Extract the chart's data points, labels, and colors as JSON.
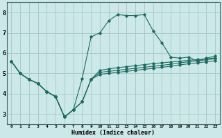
{
  "title": "",
  "xlabel": "Humidex (Indice chaleur)",
  "ylabel": "",
  "bg_color": "#cce8e8",
  "grid_color": "#aacccc",
  "line_color": "#1a6b60",
  "xlim": [
    -0.5,
    23.5
  ],
  "ylim": [
    2.5,
    8.5
  ],
  "xticks": [
    0,
    1,
    2,
    3,
    4,
    5,
    6,
    7,
    8,
    9,
    10,
    11,
    12,
    13,
    14,
    15,
    16,
    17,
    18,
    19,
    20,
    21,
    22,
    23
  ],
  "yticks": [
    3,
    4,
    5,
    6,
    7,
    8
  ],
  "series": [
    [
      5.6,
      5.0,
      4.7,
      4.5,
      4.1,
      3.85,
      2.85,
      3.2,
      3.6,
      4.7,
      5.15,
      5.22,
      5.28,
      5.33,
      5.38,
      5.43,
      5.48,
      5.52,
      5.56,
      5.6,
      5.64,
      5.68,
      5.72,
      5.76
    ],
    [
      5.6,
      5.0,
      4.7,
      4.5,
      4.1,
      3.85,
      2.85,
      3.2,
      4.75,
      6.8,
      7.0,
      7.6,
      7.9,
      7.85,
      7.85,
      7.9,
      7.1,
      6.5,
      5.8,
      5.75,
      5.8,
      5.6,
      5.75,
      5.85
    ],
    [
      5.6,
      5.0,
      4.7,
      4.5,
      4.1,
      3.85,
      2.85,
      3.2,
      3.6,
      4.7,
      4.95,
      5.0,
      5.05,
      5.1,
      5.15,
      5.2,
      5.25,
      5.3,
      5.35,
      5.42,
      5.47,
      5.52,
      5.57,
      5.62
    ],
    [
      5.6,
      5.0,
      4.7,
      4.5,
      4.1,
      3.85,
      2.85,
      3.2,
      3.6,
      4.7,
      5.05,
      5.1,
      5.15,
      5.2,
      5.25,
      5.3,
      5.35,
      5.4,
      5.45,
      5.52,
      5.57,
      5.62,
      5.67,
      5.72
    ]
  ]
}
